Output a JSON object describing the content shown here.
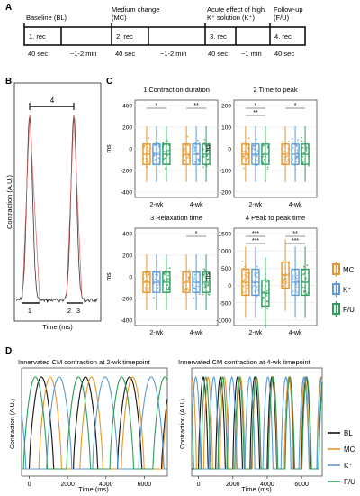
{
  "panels": {
    "A": "A",
    "B": "B",
    "C": "C",
    "D": "D"
  },
  "panelA": {
    "phases": [
      {
        "label": "Baseline (BL)",
        "rec": "1. rec",
        "dur": "40 sec",
        "gap": "~1-2 min"
      },
      {
        "label": "Medium change (MC)",
        "label_l1": "Medium change",
        "label_l2": "(MC)",
        "rec": "2. rec",
        "dur": "40 sec",
        "gap": "~1-2 min"
      },
      {
        "label_l1": "Acute effect of high",
        "label_l2": "K⁺ solution (K⁺)",
        "rec": "3. rec",
        "dur": "40 sec",
        "gap": "~1 min"
      },
      {
        "label_l1": "Follow-up",
        "label_l2": "(F/U)",
        "rec": "4. rec",
        "dur": "40 sec"
      }
    ]
  },
  "panelB": {
    "ylabel": "Contraction (A.U.)",
    "xlabel": "Time (ms)",
    "top_label": "4",
    "markers": [
      "1",
      "2",
      "3"
    ]
  },
  "panelC": {
    "ylabel": "ms",
    "groups": [
      "2-wk",
      "4-wk"
    ],
    "legend": [
      {
        "key": "MC",
        "label": "MC",
        "color": "#e8962a"
      },
      {
        "key": "K",
        "label": "K⁺",
        "color": "#5b9bd5"
      },
      {
        "key": "FU",
        "label": "F/U",
        "color": "#2e9e5b"
      }
    ],
    "subplots": [
      {
        "title": "1 Contraction duration",
        "yticks": [
          "400",
          "200",
          "0",
          "-200",
          "-400"
        ],
        "sig": [
          {
            "g": 0,
            "text": "*"
          },
          {
            "g": 1,
            "text": "**"
          }
        ]
      },
      {
        "title": "2 Time to peak",
        "yticks": [
          "200",
          "100",
          "0",
          "-100",
          "-200"
        ],
        "sig": [
          {
            "g": 0,
            "text": "*"
          },
          {
            "g": 0,
            "text": "**"
          },
          {
            "g": 1,
            "text": "*"
          }
        ]
      },
      {
        "title": "3 Relaxation time",
        "yticks": [
          "400",
          "200",
          "0",
          "-200",
          "-400"
        ],
        "sig": [
          {
            "g": 1,
            "text": "*"
          }
        ]
      },
      {
        "title": "4 Peak to peak time",
        "yticks": [
          "1500",
          "1000",
          "500",
          "0",
          "-500",
          "-1000"
        ],
        "sig": [
          {
            "g": 0,
            "text": "***"
          },
          {
            "g": 0,
            "text": "***"
          },
          {
            "g": 1,
            "text": "**"
          },
          {
            "g": 1,
            "text": "***"
          }
        ]
      }
    ]
  },
  "panelD": {
    "left_title": "Innervated CM contraction at 2-wk timepoint",
    "right_title": "Innervated CM contraction at 4-wk timepoint",
    "ylabel": "Contraction (A.U.)",
    "xlabel": "Time (ms)",
    "xticks": [
      "0",
      "2000",
      "4000",
      "6000"
    ],
    "legend": [
      {
        "label": "BL",
        "color": "#111111"
      },
      {
        "label": "MC",
        "color": "#e8962a"
      },
      {
        "label": "K⁺",
        "color": "#5b9bd5"
      },
      {
        "label": "F/U",
        "color": "#2e9e5b"
      }
    ]
  }
}
